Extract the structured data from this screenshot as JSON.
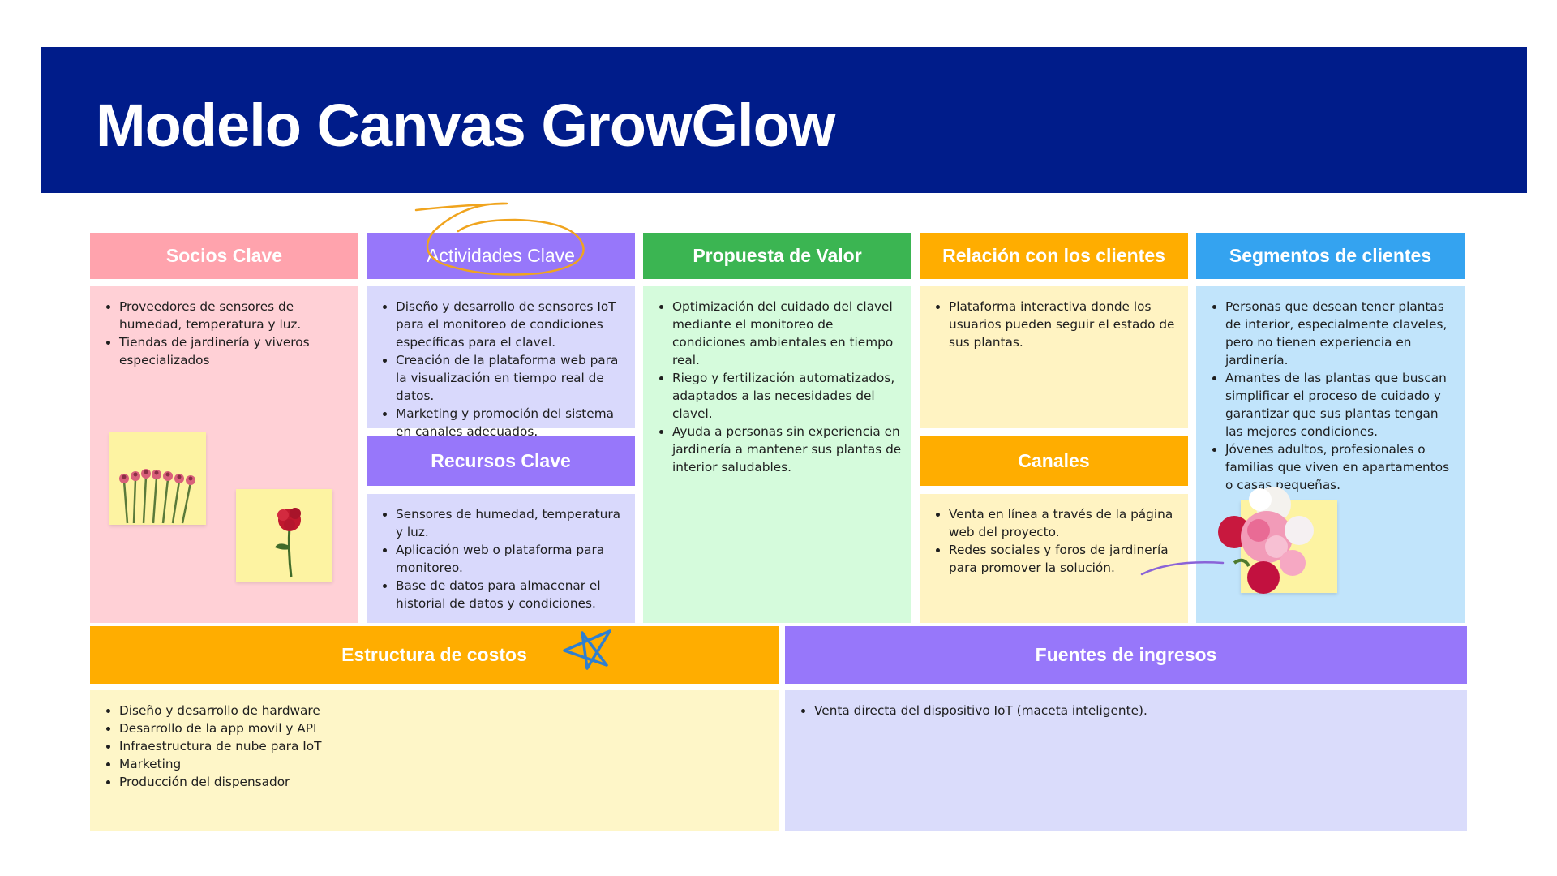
{
  "title": "Modelo Canvas GrowGlow",
  "colors": {
    "banner": "#001c8a",
    "socios_header": "#ffa3ad",
    "socios_body": "#ffd0d6",
    "actividades_header": "#9777fa",
    "actividades_body": "#d9d9fc",
    "propuesta_header": "#3bb552",
    "propuesta_body": "#d5fbdc",
    "relacion_header": "#ffad00",
    "relacion_body": "#fff3c2",
    "segmentos_header": "#34a3f0",
    "segmentos_body": "#c1e4fb",
    "costos_body": "#fef6c8",
    "ingresos_body": "#dadcfb"
  },
  "sections": {
    "socios": {
      "title": "Socios Clave",
      "items": [
        "Proveedores de sensores de humedad, temperatura y luz.",
        "Tiendas de jardinería y viveros especializados"
      ]
    },
    "actividades": {
      "title": "Actividades Clave",
      "items": [
        "Diseño y desarrollo de sensores IoT para el monitoreo de condiciones específicas para el clavel.",
        "Creación de la plataforma web para la visualización en tiempo real de datos.",
        "Marketing y promoción del sistema en canales adecuados."
      ]
    },
    "recursos": {
      "title": "Recursos Clave",
      "items": [
        "Sensores de humedad, temperatura y luz.",
        "Aplicación web o plataforma para monitoreo.",
        "Base de datos para almacenar el historial de datos y condiciones."
      ]
    },
    "propuesta": {
      "title": "Propuesta de Valor",
      "items": [
        "Optimización del cuidado del clavel mediante el monitoreo de condiciones ambientales en tiempo real.",
        "Riego y fertilización automatizados, adaptados a las necesidades del clavel.",
        "Ayuda a personas sin experiencia en jardinería a mantener sus plantas de interior saludables."
      ]
    },
    "relacion": {
      "title": "Relación con los clientes",
      "items": [
        "Plataforma interactiva donde los usuarios pueden seguir el estado de sus plantas."
      ]
    },
    "canales": {
      "title": "Canales",
      "items": [
        "Venta en línea a través de la página web del proyecto.",
        "Redes sociales y foros de jardinería para promover la solución."
      ]
    },
    "segmentos": {
      "title": "Segmentos de clientes",
      "items": [
        "Personas que desean tener plantas de interior, especialmente claveles, pero no tienen experiencia en jardinería.",
        "Amantes de las plantas que buscan simplificar el proceso de cuidado y garantizar que sus plantas tengan las mejores condiciones.",
        "Jóvenes adultos, profesionales o familias que viven en apartamentos o casas pequeñas."
      ]
    },
    "costos": {
      "title": "Estructura de costos",
      "items": [
        "Diseño y desarrollo de hardware",
        "Desarrollo de la app movil y API",
        "Infraestructura de nube para IoT",
        "Marketing",
        "Producción del dispensador"
      ]
    },
    "ingresos": {
      "title": "Fuentes de ingresos",
      "items": [
        "Venta directa del dispositivo IoT (maceta inteligente)."
      ]
    }
  },
  "decorations": {
    "carnation_row": "carnation-row-photo",
    "red_carnation": "red-carnation-photo",
    "bouquet": "carnation-bouquet-photo",
    "star": "star-doodle",
    "circle": "circle-doodle",
    "arrow": "arrow-doodle"
  }
}
